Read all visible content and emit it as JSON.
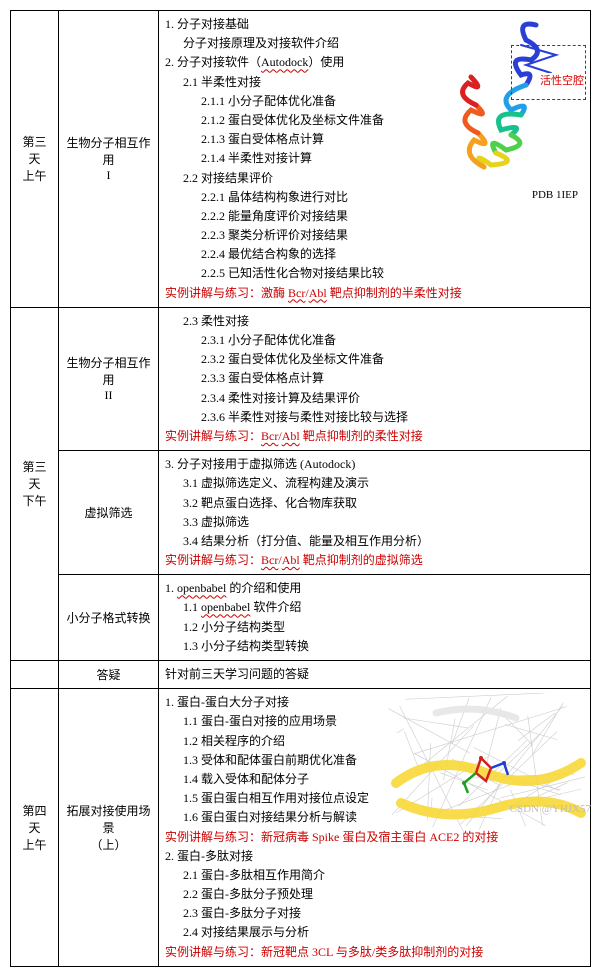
{
  "col_widths": {
    "day": 48,
    "topic": 100,
    "content": 432
  },
  "rows": [
    {
      "day": "第三天\n上午",
      "day_rowspan": 1,
      "topic": "生物分子相互作用\nI",
      "has_protein1": true,
      "protein1": {
        "pdb_label": "PDB 1IEP",
        "hotspot_text": "活性空腔",
        "ribbon_colors": [
          "#2b3fd6",
          "#1fa0e8",
          "#17c28b",
          "#4fd04a",
          "#e6d31a",
          "#f3a11f",
          "#ef5a1f",
          "#da2020"
        ]
      },
      "lines": [
        {
          "indent": 0,
          "t": "1. 分子对接基础"
        },
        {
          "indent": 1,
          "t": "分子对接原理及对接软件介绍"
        },
        {
          "indent": 0,
          "t": "2. 分子对接软件（"
        },
        {
          "indent": 0,
          "append_wavy": "Autodock",
          "append_plain": "）使用",
          "same_line": true
        },
        {
          "indent": 1,
          "t": "2.1 半柔性对接"
        },
        {
          "indent": 2,
          "t": "2.1.1  小分子配体优化准备"
        },
        {
          "indent": 2,
          "t": "2.1.2  蛋白受体优化及坐标文件准备"
        },
        {
          "indent": 2,
          "t": "2.1.3  蛋白受体格点计算"
        },
        {
          "indent": 2,
          "t": "2.1.4  半柔性对接计算"
        },
        {
          "indent": 1,
          "t": "2.2 对接结果评价"
        },
        {
          "indent": 2,
          "t": "2.2.1  晶体结构构象进行对比"
        },
        {
          "indent": 2,
          "t": "2.2.2  能量角度评价对接结果"
        },
        {
          "indent": 2,
          "t": "2.2.3  聚类分析评价对接结果"
        },
        {
          "indent": 2,
          "t": "2.2.4  最优结合构象的选择"
        },
        {
          "indent": 2,
          "t": "2.2.5  已知活性化合物对接结果比较"
        },
        {
          "indent": 0,
          "red": true,
          "t": "实例讲解与练习：激酶 ",
          "wavy": "Bcr",
          "mid": "/",
          "wavy2": "Abl",
          "tail": " 靶点抑制剂的半柔性对接"
        }
      ]
    },
    {
      "day": "第三天\n下午",
      "day_rowspan": 3,
      "topic": "生物分子相互作用\nII",
      "lines": [
        {
          "indent": 1,
          "t": "2.3 柔性对接"
        },
        {
          "indent": 2,
          "t": "2.3.1  小分子配体优化准备"
        },
        {
          "indent": 2,
          "t": "2.3.2  蛋白受体优化及坐标文件准备"
        },
        {
          "indent": 2,
          "t": "2.3.3  蛋白受体格点计算"
        },
        {
          "indent": 2,
          "t": "2.3.4  柔性对接计算及结果评价"
        },
        {
          "indent": 2,
          "t": "2.3.6  半柔性对接与柔性对接比较与选择"
        },
        {
          "indent": 0,
          "red": true,
          "t": "实例讲解与练习：",
          "wavy": "Bcr",
          "mid": "/",
          "wavy2": "Abl",
          "tail": " 靶点抑制剂的柔性对接"
        }
      ]
    },
    {
      "topic": "虚拟筛选",
      "lines": [
        {
          "indent": 0,
          "t": "3. 分子对接用于虚拟筛选 (Autodock)"
        },
        {
          "indent": 1,
          "t": "3.1 虚拟筛选定义、流程构建及演示"
        },
        {
          "indent": 1,
          "t": "3.2 靶点蛋白选择、化合物库获取"
        },
        {
          "indent": 1,
          "t": "3.3 虚拟筛选"
        },
        {
          "indent": 1,
          "t": "3.4 结果分析（打分值、能量及相互作用分析）"
        },
        {
          "indent": 0,
          "red": true,
          "t": "实例讲解与练习：",
          "wavy": "Bcr",
          "mid": "/",
          "wavy2": "Abl",
          "tail": " 靶点抑制剂的虚拟筛选"
        }
      ]
    },
    {
      "topic": "小分子格式转换",
      "lines": [
        {
          "indent": 0,
          "t": "1. ",
          "wavy": "openbabel",
          "tail": " 的介绍和使用"
        },
        {
          "indent": 1,
          "t": "1.1 ",
          "wavy": "openbabel",
          "tail": " 软件介绍"
        },
        {
          "indent": 1,
          "t": "1.2 小分子结构类型"
        },
        {
          "indent": 1,
          "t": "1.3 小分子结构类型转换"
        }
      ]
    },
    {
      "day": "",
      "day_rowspan": 1,
      "topic": "答疑",
      "lines": [
        {
          "indent": 0,
          "t": "针对前三天学习问题的答疑"
        }
      ]
    },
    {
      "day": "第四天\n上午",
      "day_rowspan": 1,
      "topic": "拓展对接使用场景\n（上）",
      "has_protein2": true,
      "protein2": {
        "ribbon_colors": [
          "#f9d938",
          "#e6e6e6",
          "#8cd0f0"
        ],
        "ligand_colors": [
          "#d02020",
          "#2040d0",
          "#20a020"
        ]
      },
      "lines": [
        {
          "indent": 0,
          "t": "1. 蛋白-蛋白大分子对接"
        },
        {
          "indent": 1,
          "t": "1.1 蛋白-蛋白对接的应用场景"
        },
        {
          "indent": 1,
          "t": "1.2 相关程序的介绍"
        },
        {
          "indent": 1,
          "t": "1.3 受体和配体蛋白前期优化准备"
        },
        {
          "indent": 1,
          "t": "1.4 载入受体和配体分子"
        },
        {
          "indent": 1,
          "t": "1.5 蛋白蛋白相互作用对接位点设定"
        },
        {
          "indent": 1,
          "t": "1.6 蛋白蛋白对接结果分析与解读"
        },
        {
          "indent": 0,
          "red": true,
          "t": "实例讲解与练习：新冠病毒 Spike 蛋白及宿主蛋白 ACE2 的对接"
        },
        {
          "indent": 0,
          "t": "2. 蛋白-多肽对接"
        },
        {
          "indent": 1,
          "t": "2.1 蛋白-多肽相互作用简介"
        },
        {
          "indent": 1,
          "t": "2.2 蛋白-多肽分子预处理"
        },
        {
          "indent": 1,
          "t": "2.3 蛋白-多肽分子对接"
        },
        {
          "indent": 1,
          "t": "2.4 对接结果展示与分析"
        },
        {
          "indent": 0,
          "red": true,
          "t": "实例讲解与练习：新冠靶点 3CL 与多肽/类多肽抑制剂的对接"
        }
      ]
    }
  ],
  "watermark": "CSDN @YHJX57"
}
